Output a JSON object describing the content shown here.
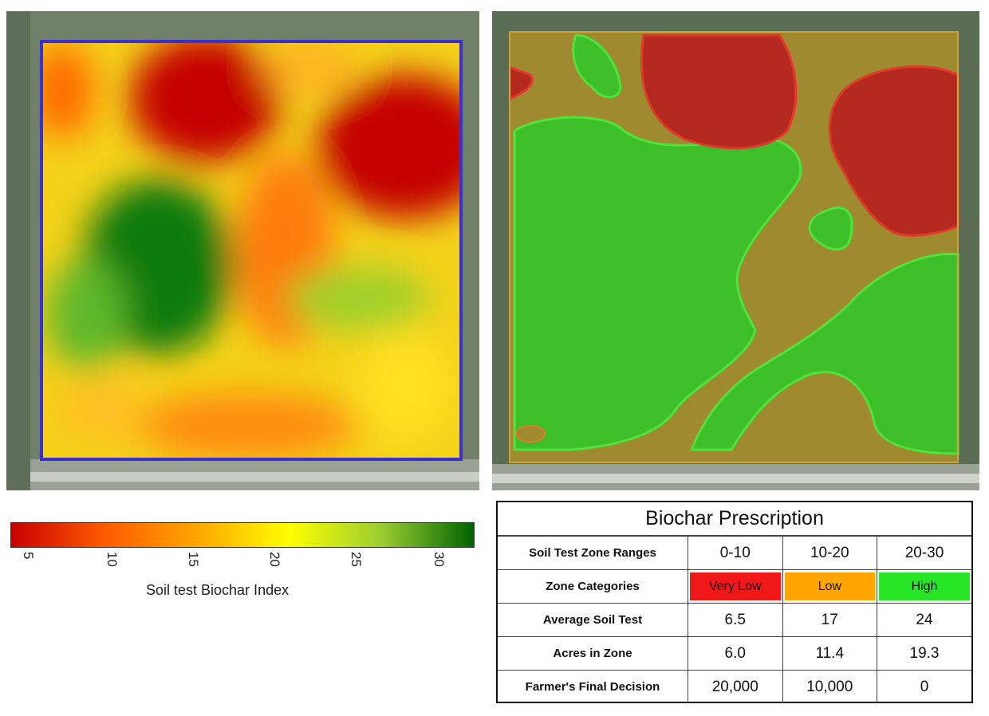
{
  "colors": {
    "very_low": "#f01818",
    "low": "#ffa500",
    "high": "#26e626",
    "field_boundary": "#3a2fd0"
  },
  "colorbar": {
    "ticks": [
      "5",
      "10",
      "15",
      "20",
      "25",
      "30"
    ],
    "label": "Soil test Biochar Index",
    "stops": [
      "#c80000",
      "#ff5a00",
      "#ffa500",
      "#ffff00",
      "#9acd32",
      "#006400"
    ]
  },
  "prescription": {
    "title": "Biochar Prescription",
    "rows": [
      {
        "label": "Soil Test Zone Ranges",
        "values": [
          "0-10",
          "10-20",
          "20-30"
        ]
      },
      {
        "label": "Zone Categories",
        "values": [
          "Very Low",
          "Low",
          "High"
        ]
      },
      {
        "label": "Average Soil Test",
        "values": [
          "6.5",
          "17",
          "24"
        ]
      },
      {
        "label": "Acres in Zone",
        "values": [
          "6.0",
          "11.4",
          "19.3"
        ]
      },
      {
        "label": "Farmer's Final Decision",
        "values": [
          "20,000",
          "10,000",
          "0"
        ]
      }
    ]
  }
}
